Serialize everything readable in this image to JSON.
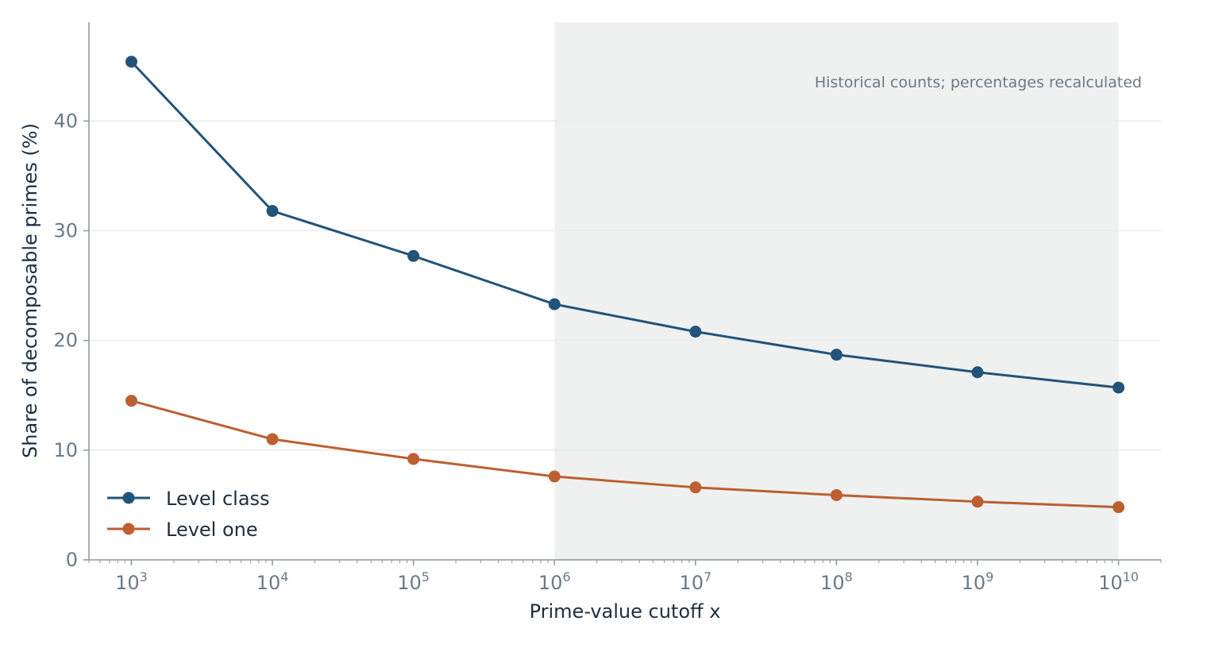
{
  "chart_data": {
    "type": "line",
    "x_scale": "log",
    "x": [
      1000,
      10000,
      100000,
      1000000,
      10000000,
      100000000,
      1000000000,
      10000000000
    ],
    "x_tick_labels": [
      {
        "base": "10",
        "exp": "3"
      },
      {
        "base": "10",
        "exp": "4"
      },
      {
        "base": "10",
        "exp": "5"
      },
      {
        "base": "10",
        "exp": "6"
      },
      {
        "base": "10",
        "exp": "7"
      },
      {
        "base": "10",
        "exp": "8"
      },
      {
        "base": "10",
        "exp": "9"
      },
      {
        "base": "10",
        "exp": "10"
      }
    ],
    "y_ticks": [
      0,
      10,
      20,
      30,
      40
    ],
    "y_tick_labels": [
      "0",
      "10",
      "20",
      "30",
      "40"
    ],
    "xlabel": "Prime-value cutoff x",
    "ylabel": "Share of decomposable primes (%)",
    "xlim": [
      500,
      20000000000
    ],
    "ylim": [
      0,
      49
    ],
    "grid": "horizontal",
    "legend_position": "lower-left",
    "shaded_region": {
      "x_start": 1000000,
      "x_end": 10000000000,
      "color": "#eff1f0"
    },
    "annotation": "Historical counts; percentages recalculated",
    "series": [
      {
        "name": "Level class",
        "color": "#22547a",
        "values": [
          45.4,
          31.8,
          27.7,
          23.3,
          20.8,
          18.7,
          17.1,
          15.7
        ]
      },
      {
        "name": "Level one",
        "color": "#bd5f33",
        "values": [
          14.5,
          11.0,
          9.2,
          7.6,
          6.6,
          5.9,
          5.3,
          4.8
        ]
      }
    ]
  }
}
